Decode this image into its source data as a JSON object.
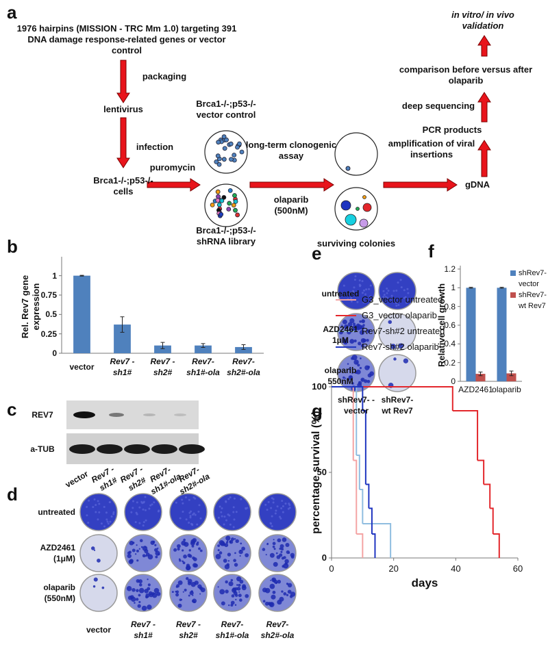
{
  "panel_a": {
    "label": "a",
    "library": "1976 hairpins (MISSION - TRC Mm 1.0) targeting 391 DNA damage response-related genes or vector control",
    "packaging": "packaging",
    "lentivirus": "lentivirus",
    "infection": "infection",
    "cells": "Brca1-/-;p53-/- cells",
    "puromycin": "puromycin",
    "control": "Brca1-/-;p53-/- vector control",
    "library_cells": "Brca1-/-;p53-/- shRNA library",
    "assay": "long-term clonogenic assay",
    "olaparib": "olaparib (500nM)",
    "colonies": "surviving colonies",
    "gdna": "gDNA",
    "amplification": "amplification of viral insertions",
    "pcr": "PCR products",
    "sequencing": "deep sequencing",
    "comparison": "comparison before versus after olaparib",
    "validation": "in vitro/ in vivo validation"
  },
  "chart_data": [
    {
      "panel": "b",
      "type": "bar",
      "ylabel": "Rel. Rev7 gene expression",
      "categories": [
        "vector",
        "Rev7 -sh1#",
        "Rev7 -sh2#",
        "Rev7- sh1#-ola",
        "Rev7- sh2#-ola"
      ],
      "values": [
        1,
        0.37,
        0.1,
        0.1,
        0.08
      ],
      "errors": [
        0.005,
        0.1,
        0.04,
        0.025,
        0.03
      ],
      "color": "#4f81bd",
      "ylim": [
        0,
        1.2
      ],
      "yticks": [
        0,
        0.25,
        0.5,
        0.75,
        1
      ]
    },
    {
      "panel": "f",
      "type": "bar",
      "ylabel": "Relative cell growth",
      "categories": [
        "AZD2461",
        "olaparib"
      ],
      "series": [
        {
          "name": "shRev7- vector",
          "color": "#4f81bd",
          "values": [
            1,
            1
          ],
          "errors": [
            0.005,
            0.005
          ]
        },
        {
          "name": "shRev7-wt Rev7",
          "color": "#c0504d",
          "values": [
            0.08,
            0.085
          ],
          "errors": [
            0.02,
            0.025
          ]
        }
      ],
      "ylim": [
        0,
        1.2
      ],
      "yticks": [
        0,
        0.2,
        0.4,
        0.6,
        0.8,
        1,
        1.2
      ],
      "legend": "upper right"
    },
    {
      "panel": "g",
      "type": "line",
      "step": true,
      "xlabel": "days",
      "ylabel": "percentage survival (%)",
      "series": [
        {
          "name": "G3_vector untreated",
          "color": "#f4a3a3",
          "x": [
            0,
            7,
            8,
            10
          ],
          "values": [
            100,
            57,
            14,
            0
          ]
        },
        {
          "name": "G3_vector olaparib",
          "color": "#e3262b",
          "x": [
            0,
            39,
            47,
            49,
            51,
            52,
            54
          ],
          "values": [
            100,
            86,
            57,
            43,
            29,
            14,
            0
          ]
        },
        {
          "name": "Rev7-sh#2 untreated",
          "color": "#8fbde0",
          "x": [
            0,
            8,
            9,
            10,
            19
          ],
          "values": [
            100,
            60,
            40,
            20,
            0
          ]
        },
        {
          "name": "Rev7-sh#2 olaparib",
          "color": "#1f35c0",
          "x": [
            0,
            10,
            11,
            12,
            13,
            14
          ],
          "values": [
            100,
            86,
            43,
            29,
            14,
            0
          ]
        }
      ],
      "xlim": [
        0,
        60
      ],
      "xticks": [
        0,
        20,
        40,
        60
      ],
      "ylim": [
        0,
        100
      ],
      "yticks": [
        0,
        50,
        100
      ],
      "legend": "top"
    }
  ],
  "panel_c": {
    "label": "c",
    "rows": [
      "REV7",
      "a-TUB"
    ],
    "lanes": [
      "vector",
      "Rev7 -sh1#",
      "Rev7 -sh2#",
      "Rev7- sh1#-ola",
      "Rev7- sh2#-ola"
    ]
  },
  "panel_d": {
    "label": "d",
    "rows": [
      "untreated",
      "AZD2461 (1μM)",
      "olaparib (550nM)"
    ],
    "columns": [
      "vector",
      "Rev7 -sh1#",
      "Rev7 -sh2#",
      "Rev7- sh1#-ola",
      "Rev7- sh2#-ola"
    ]
  },
  "panel_e": {
    "label": "e",
    "rows": [
      "untreated",
      "AZD2461 1μM",
      "olaparib 550nM"
    ],
    "columns": [
      "shRev7- -vector",
      "shRev7- wt Rev7"
    ]
  }
}
